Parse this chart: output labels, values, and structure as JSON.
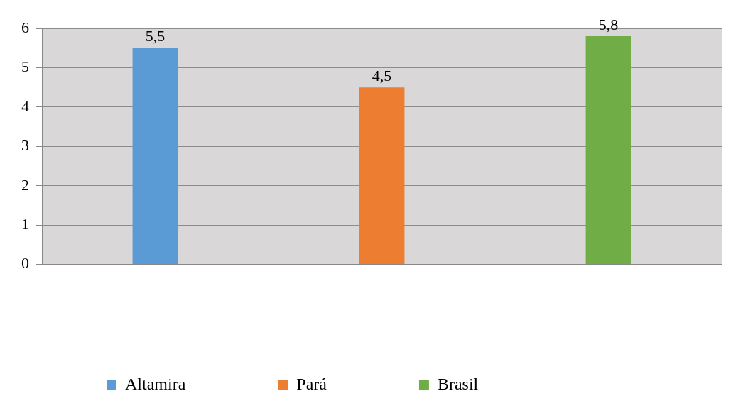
{
  "chart_data": {
    "type": "bar",
    "categories": [
      null,
      null,
      null
    ],
    "series": [
      {
        "name": "Altamira",
        "color": "#5b9bd5",
        "values": [
          5.5,
          null,
          null
        ],
        "value_labels": [
          "5,5",
          null,
          null
        ]
      },
      {
        "name": "Pará",
        "color": "#ed7d31",
        "values": [
          null,
          4.5,
          null
        ],
        "value_labels": [
          null,
          "4,5",
          null
        ]
      },
      {
        "name": "Brasil",
        "color": "#70ad47",
        "values": [
          null,
          null,
          5.8
        ],
        "value_labels": [
          null,
          null,
          "5,8"
        ]
      }
    ],
    "ylim": [
      0,
      6
    ],
    "yticks": [
      0,
      1,
      2,
      3,
      4,
      5,
      6
    ],
    "grid": "y",
    "legend": "bottom"
  }
}
